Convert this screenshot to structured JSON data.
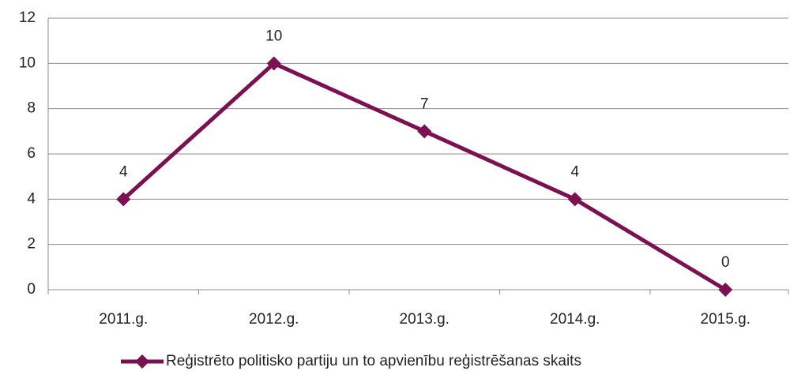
{
  "chart_data": {
    "type": "line",
    "categories": [
      "2011.g.",
      "2012.g.",
      "2013.g.",
      "2014.g.",
      "2015.g."
    ],
    "series": [
      {
        "name": "Reģistrēto politisko partiju un to apvienību reģistrēšanas skaits",
        "color": "#7b1150",
        "values": [
          4,
          10,
          7,
          4,
          0
        ]
      }
    ],
    "ylim": [
      0,
      12
    ],
    "yticks": [
      0,
      2,
      4,
      6,
      8,
      10,
      12
    ],
    "grid": true,
    "legend": "bottom"
  }
}
